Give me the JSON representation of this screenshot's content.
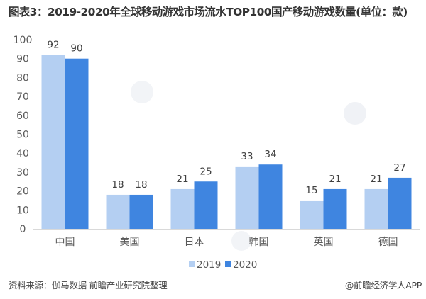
{
  "colors": {
    "series_2019": "#b4cff2",
    "series_2020": "#3f85e0",
    "axis": "#d9d9d9",
    "watermark": "#eef1f5"
  },
  "chart_data": {
    "type": "bar",
    "title": "图表3：2019-2020年全球移动游戏市场流水TOP100国产移动游戏数量(单位：款)",
    "xlabel": "",
    "ylabel": "",
    "ylim": [
      0,
      100
    ],
    "yticks": [
      0,
      10,
      20,
      30,
      40,
      50,
      60,
      70,
      80,
      90,
      100
    ],
    "grid": false,
    "legend_position": "bottom",
    "categories": [
      "中国",
      "美国",
      "日本",
      "韩国",
      "英国",
      "德国"
    ],
    "series": [
      {
        "name": "2019",
        "values": [
          92,
          18,
          21,
          33,
          15,
          21
        ]
      },
      {
        "name": "2020",
        "values": [
          90,
          18,
          25,
          34,
          21,
          27
        ]
      }
    ]
  },
  "footer": {
    "source": "资料来源：伽马数据 前瞻产业研究院整理",
    "credit": "@前瞻经济学人APP"
  },
  "watermark": {
    "text": "前瞻产业研究院",
    "icon": "qianzhan-logo-icon"
  }
}
